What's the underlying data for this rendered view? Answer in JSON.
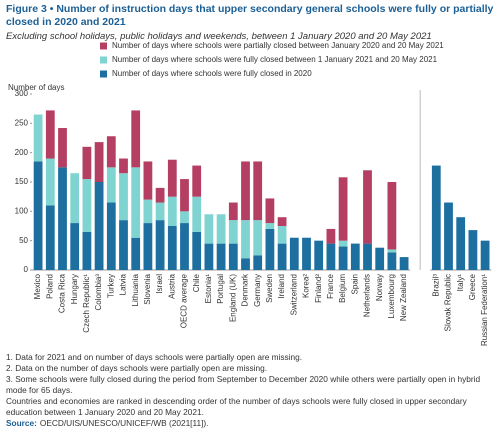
{
  "chart_data": {
    "type": "stacked_bar",
    "title": "Figure 3 • Number of instruction days that upper secondary general schools were fully or partially closed in 2020 and 2021",
    "subtitle": "Excluding school holidays, public holidays and weekends, between 1 January 2020 and 20 May 2021",
    "y_label": "Number of days",
    "categories": [
      "Mexico",
      "Poland",
      "Costa Rica",
      "Hungary",
      "Czech Republic¹",
      "Colombia³",
      "Turkey",
      "Latvia",
      "Lithuania",
      "Slovenia",
      "Israel",
      "Austria",
      "OECD average",
      "Chile",
      "Estonia¹",
      "Portugal",
      "England (UK)",
      "Denmark",
      "Germany",
      "Sweden",
      "Ireland",
      "Switzerland",
      "Korea²",
      "Finland²",
      "France",
      "Belgium",
      "Spain",
      "Netherlands",
      "Norway",
      "Luxembourg",
      "New Zealand",
      "Brazil³",
      "Slovak Republic",
      "Italy¹",
      "Greece",
      "Russian Federation¹"
    ],
    "series": [
      {
        "name": "Number of days where schools were fully closed in 2020",
        "color": "#1d6f9f",
        "values": [
          185,
          110,
          175,
          80,
          65,
          150,
          115,
          85,
          55,
          80,
          85,
          75,
          80,
          65,
          45,
          45,
          45,
          20,
          25,
          70,
          45,
          55,
          55,
          50,
          45,
          40,
          45,
          45,
          38,
          30,
          22,
          178,
          115,
          90,
          68,
          50
        ]
      },
      {
        "name": "Number of days where schools were fully closed between 1 January 2021 and 20 May 2021",
        "color": "#7fd3d1",
        "values": [
          80,
          80,
          0,
          85,
          90,
          0,
          60,
          80,
          120,
          40,
          30,
          50,
          20,
          60,
          50,
          50,
          40,
          65,
          60,
          10,
          30,
          0,
          0,
          0,
          0,
          10,
          0,
          0,
          0,
          5,
          0,
          0,
          0,
          0,
          0,
          0
        ]
      },
      {
        "name": "Number of days where schools were partially closed between January 2020 and 20 May 2021",
        "color": "#b53f62",
        "values": [
          0,
          82,
          67,
          0,
          55,
          68,
          53,
          25,
          97,
          65,
          25,
          63,
          55,
          53,
          0,
          0,
          30,
          100,
          100,
          42,
          15,
          0,
          0,
          0,
          25,
          108,
          0,
          125,
          0,
          115,
          0,
          0,
          0,
          0,
          0,
          0
        ]
      }
    ],
    "ylim": [
      0,
      300
    ],
    "yticks": [
      0,
      50,
      100,
      150,
      200,
      250,
      300
    ],
    "notes": [
      "1. Data for 2021 and on number of days schools were partially open are missing.",
      "2. Data on the number of days schools were partially open are missing.",
      "3. Some schools were fully closed during the period from September to December 2020 while others were partially open in hybrid mode for 65 days.",
      "Countries and economies are ranked in descending order of the number of days schools were fully closed in upper secondary education between 1 January 2020 and 20 May 2021."
    ],
    "source_label": "Source:",
    "source": "OECD/UIS/UNESCO/UNICEF/WB (2021[11])."
  }
}
